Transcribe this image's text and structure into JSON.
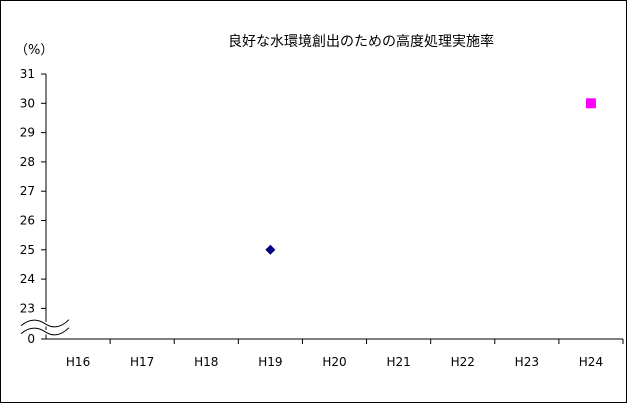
{
  "chart_data": {
    "type": "scatter",
    "title": "良好な水環境創出のための高度処理実施率",
    "ylabel": "（%）",
    "xlabel": "",
    "categories": [
      "H16",
      "H17",
      "H18",
      "H19",
      "H20",
      "H21",
      "H22",
      "H23",
      "H24"
    ],
    "yticks": [
      "31",
      "30",
      "29",
      "28",
      "27",
      "26",
      "25",
      "24",
      "23",
      "0"
    ],
    "ylim": [
      23,
      31
    ],
    "axis_break": true,
    "grid": false,
    "series": [
      {
        "marker": "diamond",
        "color": "#000080",
        "points": [
          {
            "x": "H19",
            "y": 25
          }
        ]
      },
      {
        "marker": "square",
        "color": "#ff00ff",
        "points": [
          {
            "x": "H24",
            "y": 30
          }
        ]
      }
    ]
  }
}
